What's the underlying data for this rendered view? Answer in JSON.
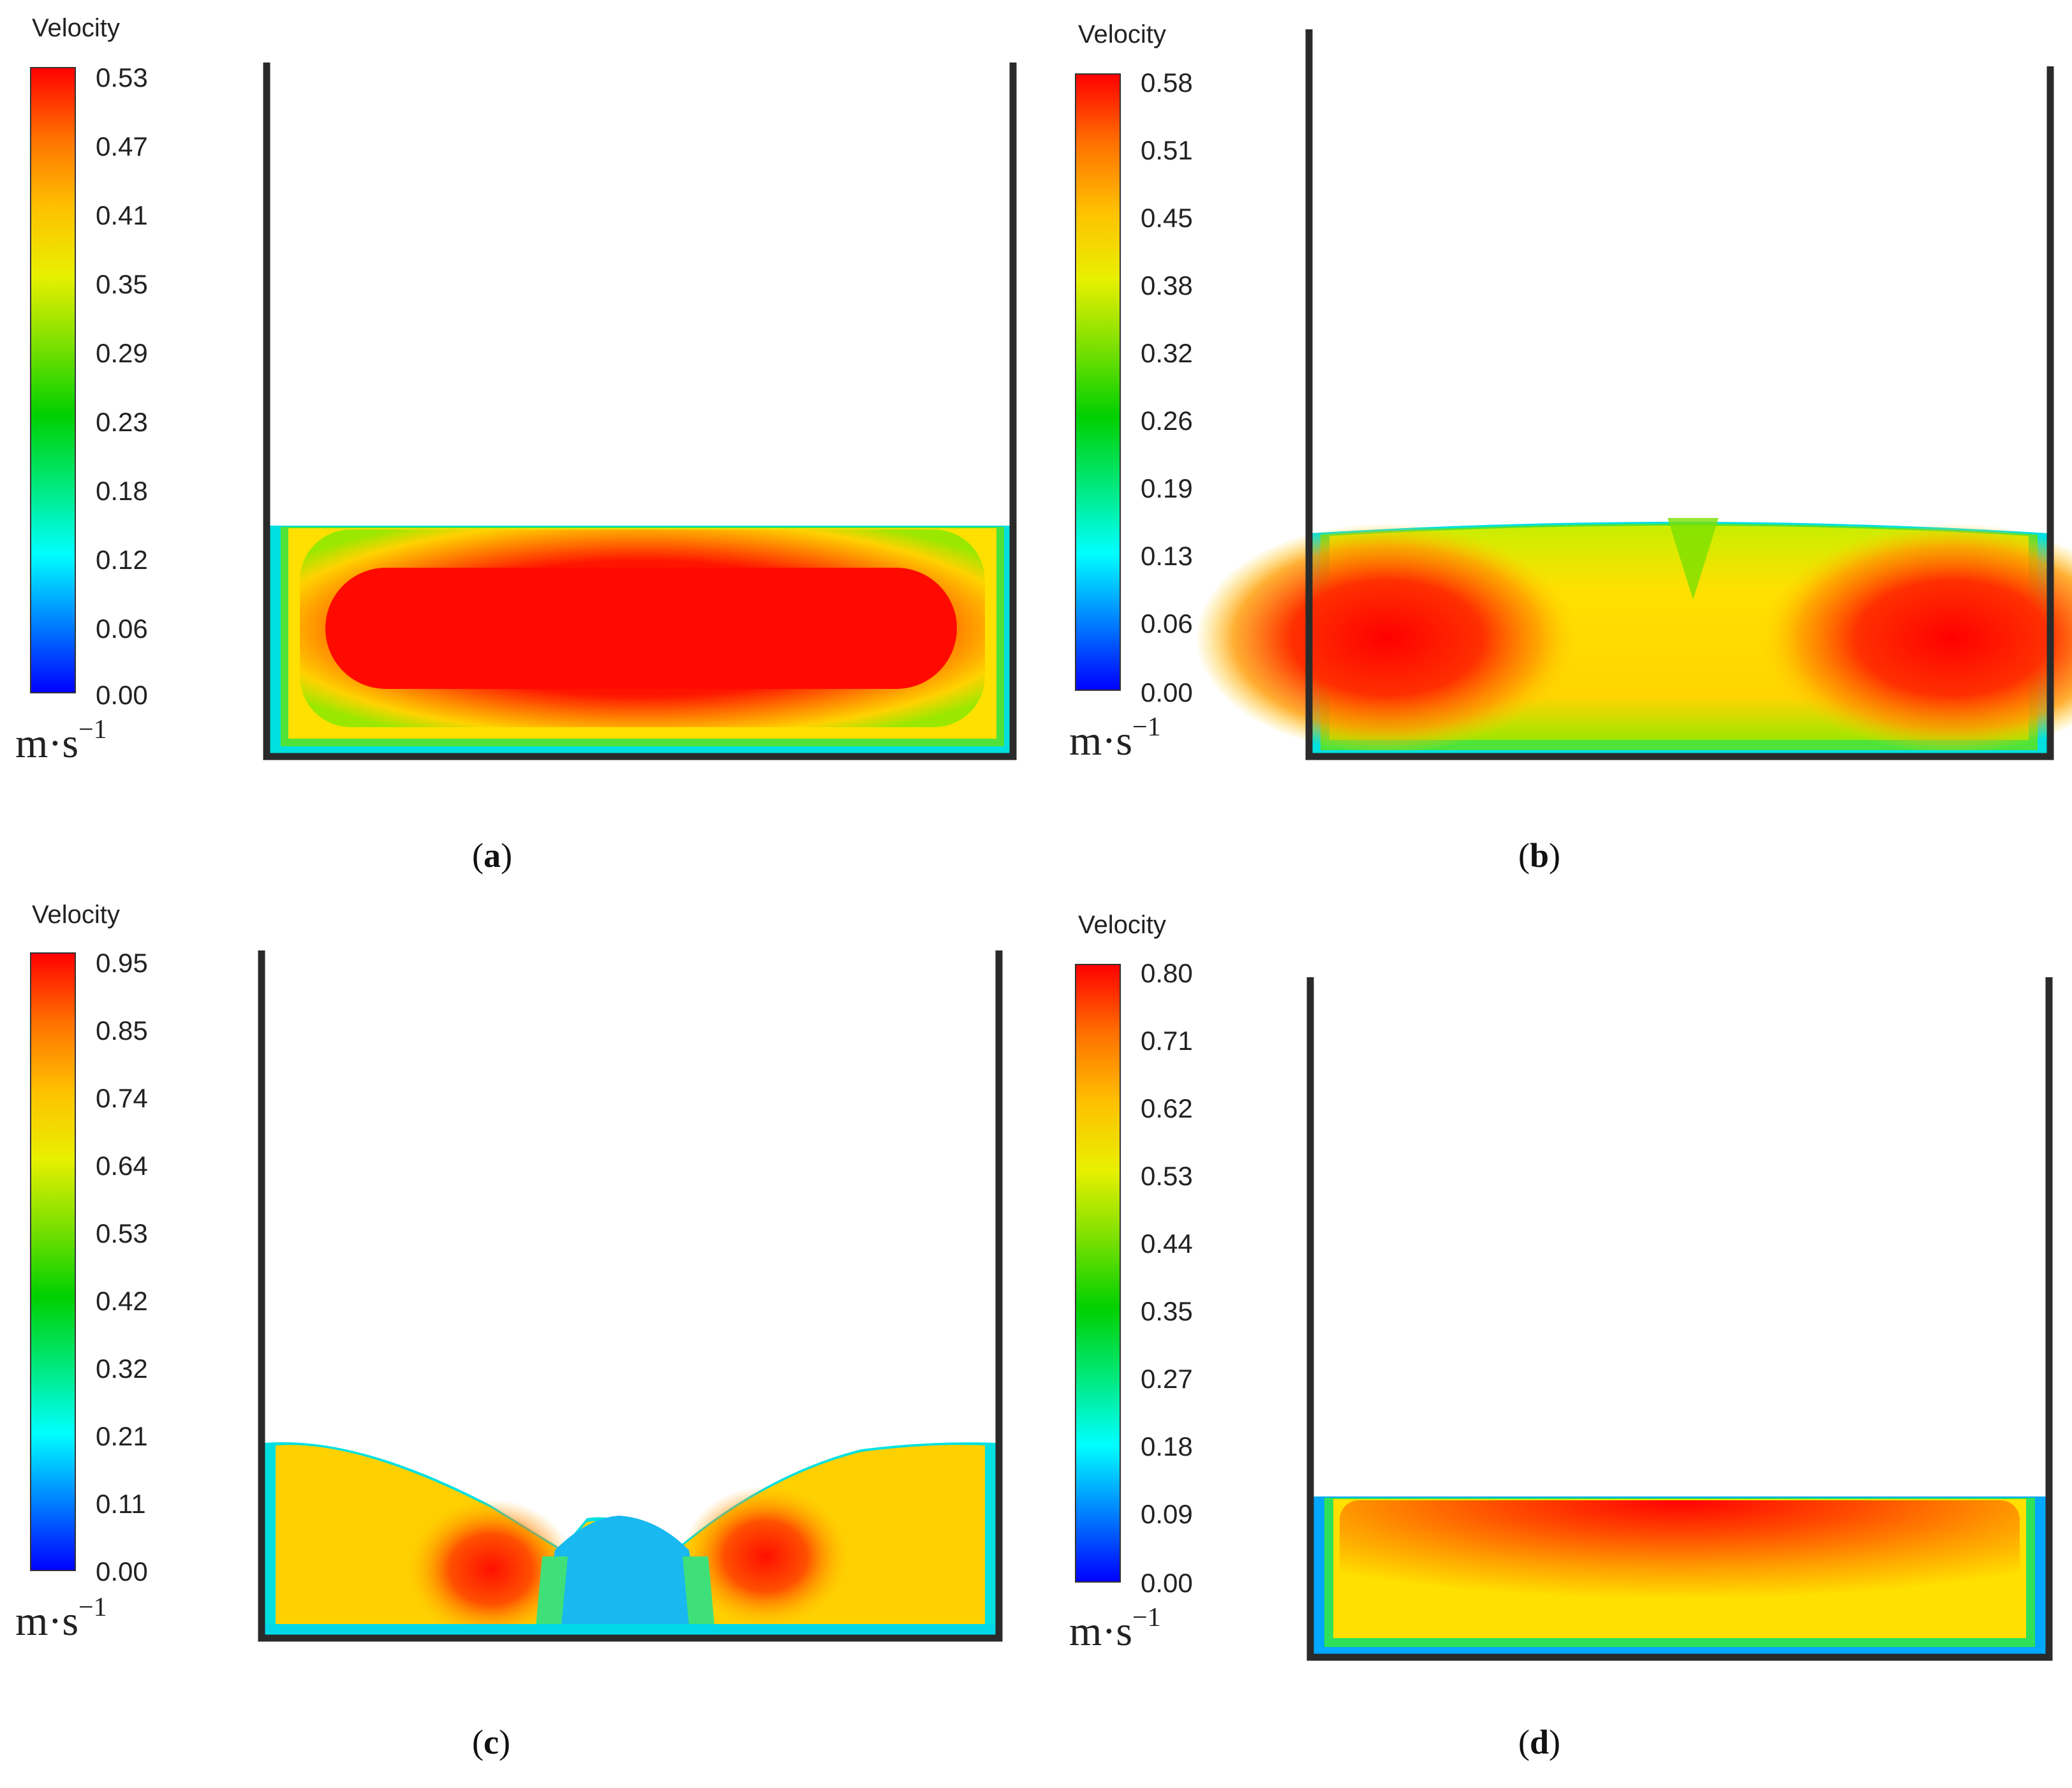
{
  "legend_title": "Velocity",
  "unit": {
    "base": "m·s",
    "exponent": "−1"
  },
  "panels": [
    {
      "id": "a",
      "caption": "a",
      "ticks": [
        "0.53",
        "0.47",
        "0.41",
        "0.35",
        "0.29",
        "0.23",
        "0.18",
        "0.12",
        "0.06",
        "0.00"
      ]
    },
    {
      "id": "b",
      "caption": "b",
      "ticks": [
        "0.58",
        "0.51",
        "0.45",
        "0.38",
        "0.32",
        "0.26",
        "0.19",
        "0.13",
        "0.06",
        "0.00"
      ]
    },
    {
      "id": "c",
      "caption": "c",
      "ticks": [
        "0.95",
        "0.85",
        "0.74",
        "0.64",
        "0.53",
        "0.42",
        "0.32",
        "0.21",
        "0.11",
        "0.00"
      ]
    },
    {
      "id": "d",
      "caption": "d",
      "ticks": [
        "0.80",
        "0.71",
        "0.62",
        "0.53",
        "0.44",
        "0.35",
        "0.27",
        "0.18",
        "0.09",
        "0.00"
      ]
    }
  ],
  "colors": {
    "colormap": [
      "#0000ff",
      "#0080ff",
      "#00ffff",
      "#00e87a",
      "#00d000",
      "#7be000",
      "#e8f000",
      "#ffc000",
      "#ff7000",
      "#ff0000"
    ],
    "wall": "#2a2a2a"
  }
}
